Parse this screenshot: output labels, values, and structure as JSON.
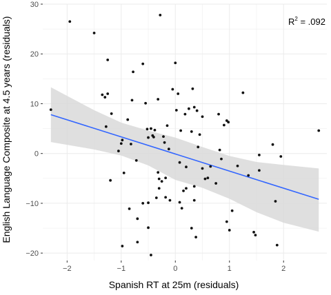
{
  "chart_data": {
    "type": "scatter",
    "xlabel": "Spanish RT at 25m (residuals)",
    "ylabel": "English Language Composite at 4.5 years (residuals)",
    "xlim": [
      -2.45,
      2.8
    ],
    "ylim": [
      -21.5,
      30
    ],
    "x_ticks": [
      -2,
      -1,
      0,
      1,
      2
    ],
    "y_ticks": [
      -20,
      -10,
      0,
      10,
      20,
      30
    ],
    "x_tick_labels": [
      "−2",
      "−1",
      "0",
      "1",
      "2"
    ],
    "y_tick_labels": [
      "−20",
      "−10",
      "0",
      "10",
      "20",
      "30"
    ],
    "grid": true,
    "annotation": {
      "base": "R",
      "sup": "2",
      "rest": " = .092"
    },
    "colors": {
      "points": "#111111",
      "line": "#3366ff",
      "band": "#d9d9d9",
      "grid": "#ebebeb"
    },
    "regression": {
      "x": [
        -2.3,
        2.65
      ],
      "y": [
        7.8,
        -9.2
      ]
    },
    "confidence_band": {
      "x": [
        -2.3,
        -1.5,
        -1.0,
        -0.5,
        0.0,
        0.5,
        1.0,
        1.5,
        2.0,
        2.65
      ],
      "upper": [
        13.3,
        8.7,
        6.2,
        4.6,
        3.2,
        1.3,
        -0.5,
        -1.7,
        -2.3,
        -3.0
      ],
      "lower": [
        2.3,
        0.8,
        -0.4,
        -2.4,
        -5.3,
        -6.9,
        -9.1,
        -11.8,
        -13.9,
        -15.7
      ]
    },
    "points": [
      {
        "x": -2.3,
        "y": 8.8
      },
      {
        "x": -1.95,
        "y": 26.5
      },
      {
        "x": -1.5,
        "y": 24.2
      },
      {
        "x": -1.35,
        "y": 11.8
      },
      {
        "x": -1.3,
        "y": 11.3
      },
      {
        "x": -1.28,
        "y": 5.4
      },
      {
        "x": -1.25,
        "y": 18.8
      },
      {
        "x": -1.25,
        "y": 12.0
      },
      {
        "x": -1.18,
        "y": 8.0
      },
      {
        "x": -1.2,
        "y": -5.4
      },
      {
        "x": -1.05,
        "y": 0.5
      },
      {
        "x": -1.0,
        "y": 2.0
      },
      {
        "x": -0.98,
        "y": 2.7
      },
      {
        "x": -0.95,
        "y": -3.9
      },
      {
        "x": -0.98,
        "y": -18.6
      },
      {
        "x": -0.88,
        "y": 6.8
      },
      {
        "x": -0.85,
        "y": -11.1
      },
      {
        "x": -0.82,
        "y": 1.9
      },
      {
        "x": -0.8,
        "y": 10.7
      },
      {
        "x": -0.78,
        "y": 16.4
      },
      {
        "x": -0.72,
        "y": -1.4
      },
      {
        "x": -0.7,
        "y": -13.1
      },
      {
        "x": -0.7,
        "y": -17.8
      },
      {
        "x": -0.6,
        "y": 18.0
      },
      {
        "x": -0.6,
        "y": -10.0
      },
      {
        "x": -0.55,
        "y": 10.1
      },
      {
        "x": -0.52,
        "y": 4.9
      },
      {
        "x": -0.5,
        "y": 3.2
      },
      {
        "x": -0.5,
        "y": -9.9
      },
      {
        "x": -0.5,
        "y": -14.9
      },
      {
        "x": -0.45,
        "y": 5.0
      },
      {
        "x": -0.45,
        "y": -20.4
      },
      {
        "x": -0.42,
        "y": 3.6
      },
      {
        "x": -0.4,
        "y": 3.3
      },
      {
        "x": -0.38,
        "y": 4.7
      },
      {
        "x": -0.35,
        "y": -8.9
      },
      {
        "x": -0.32,
        "y": 10.9
      },
      {
        "x": -0.32,
        "y": -3.8
      },
      {
        "x": -0.3,
        "y": -5.1
      },
      {
        "x": -0.3,
        "y": -7.0
      },
      {
        "x": -0.28,
        "y": 27.8
      },
      {
        "x": -0.25,
        "y": -5.6
      },
      {
        "x": -0.22,
        "y": 3.4
      },
      {
        "x": -0.2,
        "y": 2.2
      },
      {
        "x": -0.18,
        "y": -4.9
      },
      {
        "x": -0.18,
        "y": -8.8
      },
      {
        "x": -0.15,
        "y": 5.6
      },
      {
        "x": -0.12,
        "y": 0.9
      },
      {
        "x": -0.1,
        "y": -9.4
      },
      {
        "x": -0.05,
        "y": 12.9
      },
      {
        "x": 0.0,
        "y": 18.2
      },
      {
        "x": 0.02,
        "y": 8.7
      },
      {
        "x": 0.05,
        "y": 12.0
      },
      {
        "x": 0.08,
        "y": -1.8
      },
      {
        "x": 0.08,
        "y": -9.8
      },
      {
        "x": 0.1,
        "y": 4.6
      },
      {
        "x": 0.12,
        "y": -11.0
      },
      {
        "x": 0.15,
        "y": -7.5
      },
      {
        "x": 0.18,
        "y": 7.9
      },
      {
        "x": 0.2,
        "y": -2.7
      },
      {
        "x": 0.2,
        "y": -7.0
      },
      {
        "x": 0.25,
        "y": 9.0
      },
      {
        "x": 0.3,
        "y": 4.4
      },
      {
        "x": 0.3,
        "y": -15.0
      },
      {
        "x": 0.32,
        "y": 13.0
      },
      {
        "x": 0.35,
        "y": 9.3
      },
      {
        "x": 0.35,
        "y": -9.4
      },
      {
        "x": 0.35,
        "y": -6.6
      },
      {
        "x": 0.38,
        "y": -16.8
      },
      {
        "x": 0.4,
        "y": 8.6
      },
      {
        "x": 0.42,
        "y": 1.3
      },
      {
        "x": 0.45,
        "y": 3.8
      },
      {
        "x": 0.5,
        "y": 7.4
      },
      {
        "x": 0.5,
        "y": -3.0
      },
      {
        "x": 0.55,
        "y": -5.1
      },
      {
        "x": 0.6,
        "y": -4.9
      },
      {
        "x": 0.65,
        "y": -2.6
      },
      {
        "x": 0.75,
        "y": -6.0
      },
      {
        "x": 0.8,
        "y": 7.9
      },
      {
        "x": 0.82,
        "y": 0.7
      },
      {
        "x": 0.85,
        "y": -1.1
      },
      {
        "x": 0.9,
        "y": 5.7
      },
      {
        "x": 0.95,
        "y": 6.6
      },
      {
        "x": 0.98,
        "y": 6.3
      },
      {
        "x": 0.95,
        "y": -13.7
      },
      {
        "x": 1.0,
        "y": -15.4
      },
      {
        "x": 1.05,
        "y": -11.5
      },
      {
        "x": 1.15,
        "y": -2.5
      },
      {
        "x": 1.25,
        "y": 12.2
      },
      {
        "x": 1.35,
        "y": -4.4
      },
      {
        "x": 1.45,
        "y": -15.8
      },
      {
        "x": 1.48,
        "y": -16.4
      },
      {
        "x": 1.55,
        "y": -0.3
      },
      {
        "x": 1.55,
        "y": -3.4
      },
      {
        "x": 1.8,
        "y": 1.8
      },
      {
        "x": 1.85,
        "y": -9.6
      },
      {
        "x": 1.88,
        "y": -18.4
      },
      {
        "x": 1.95,
        "y": -0.6
      },
      {
        "x": 2.65,
        "y": 4.6
      }
    ]
  }
}
